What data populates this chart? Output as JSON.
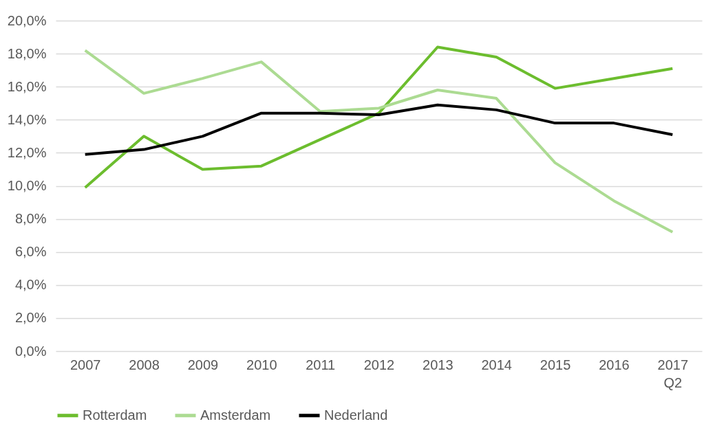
{
  "chart_data": {
    "type": "line",
    "categories": [
      "2007",
      "2008",
      "2009",
      "2010",
      "2011",
      "2012",
      "2013",
      "2014",
      "2015",
      "2016",
      "2017\nQ2"
    ],
    "series": [
      {
        "name": "Rotterdam",
        "color": "#6cbd2e",
        "values": [
          9.9,
          13.0,
          11.0,
          11.2,
          12.8,
          14.4,
          18.4,
          17.8,
          15.9,
          16.5,
          17.1
        ]
      },
      {
        "name": "Amsterdam",
        "color": "#acdb92",
        "values": [
          18.2,
          15.6,
          16.5,
          17.5,
          14.5,
          14.7,
          15.8,
          15.3,
          11.4,
          9.1,
          7.2
        ]
      },
      {
        "name": "Nederland",
        "color": "#000000",
        "values": [
          11.9,
          12.2,
          13.0,
          14.4,
          14.4,
          14.3,
          14.9,
          14.6,
          13.8,
          13.8,
          13.1
        ]
      }
    ],
    "ylim": [
      0,
      20
    ],
    "yticks": [
      {
        "value": 0,
        "label": "0,0%"
      },
      {
        "value": 2,
        "label": "2,0%"
      },
      {
        "value": 4,
        "label": "4,0%"
      },
      {
        "value": 6,
        "label": "6,0%"
      },
      {
        "value": 8,
        "label": "8,0%"
      },
      {
        "value": 10,
        "label": "10,0%"
      },
      {
        "value": 12,
        "label": "12,0%"
      },
      {
        "value": 14,
        "label": "14,0%"
      },
      {
        "value": 16,
        "label": "16,0%"
      },
      {
        "value": 18,
        "label": "18,0%"
      },
      {
        "value": 20,
        "label": "20,0%"
      }
    ],
    "grid": "y",
    "legend": "bottom",
    "marker": "none",
    "line_style": "solid"
  }
}
